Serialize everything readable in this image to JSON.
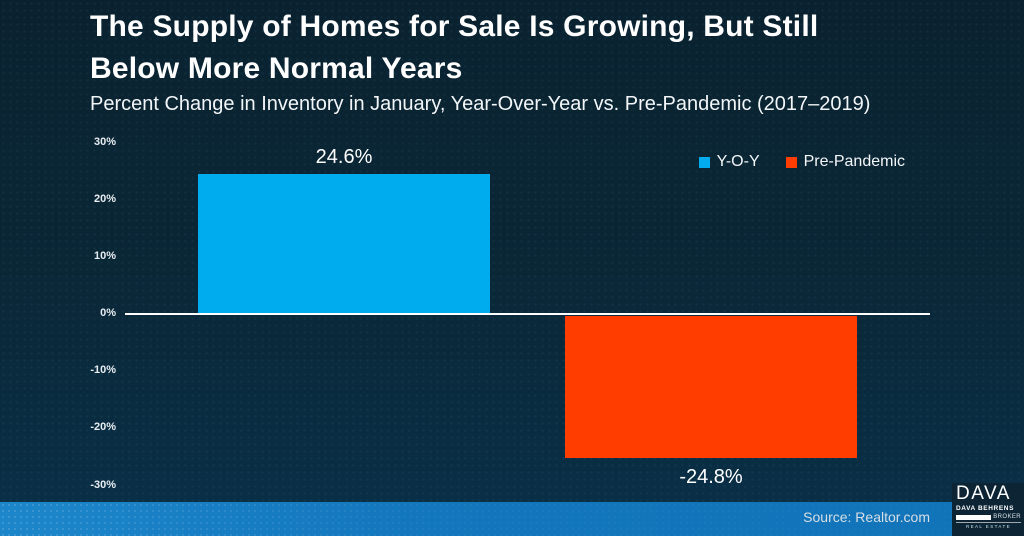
{
  "title_lines": [
    "The Supply of Homes for Sale Is Growing, But Still",
    "Below More Normal Years"
  ],
  "subtitle": "Percent Change in Inventory in January, Year-Over-Year vs. Pre-Pandemic (2017–2019)",
  "chart_data": {
    "type": "bar",
    "categories": [
      "Y-O-Y",
      "Pre-Pandemic"
    ],
    "series": [
      {
        "name": "Y-O-Y",
        "value": 24.6,
        "label": "24.6%",
        "color": "#00ACEE"
      },
      {
        "name": "Pre-Pandemic",
        "value": -24.8,
        "label": "-24.8%",
        "color": "#FF3D00"
      }
    ],
    "ylabel": "",
    "xlabel": "",
    "ylim": [
      -30,
      30
    ],
    "yticks": [
      "30%",
      "20%",
      "10%",
      "0%",
      "-10%",
      "-20%",
      "-30%"
    ],
    "grid": false,
    "legend_position": "top-right",
    "zero_axis_color": "#ffffff"
  },
  "footer": {
    "source": "Source: Realtor.com",
    "band_color": "#1377BD"
  },
  "logo": {
    "main": "DAVA",
    "name": "DAVA BEHRENS",
    "broker": "BROKER",
    "tagline": "REAL ESTATE"
  },
  "colors": {
    "background_top": "#0a2230",
    "background_bottom": "#093049",
    "title_text": "#ffffff"
  }
}
